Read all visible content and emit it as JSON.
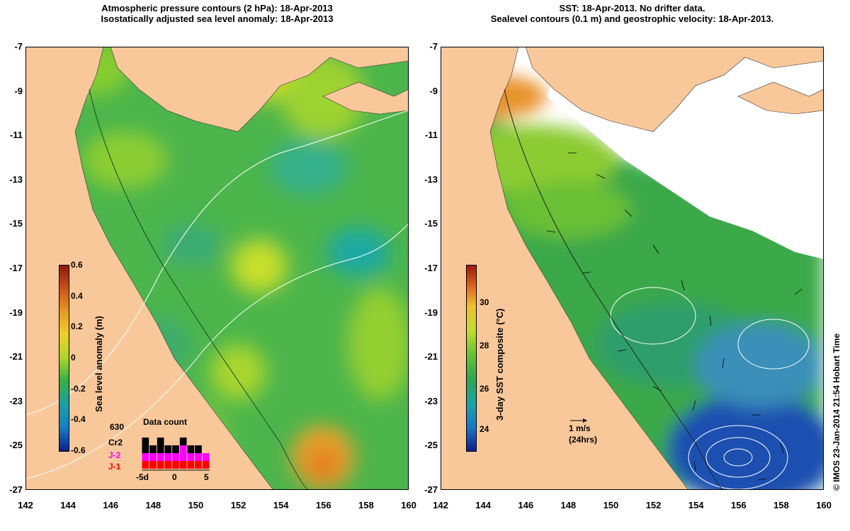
{
  "left_panel": {
    "title_line1": "Atmospheric pressure contours (2 hPa): 18-Apr-2013",
    "title_line2": "Isostatically adjusted sea level anomaly: 18-Apr-2013",
    "colorbar": {
      "label": "Sea level anomaly (m)",
      "ticks": [
        "0.6",
        "0.4",
        "0.2",
        "0",
        "-0.2",
        "-0.4",
        "-0.6"
      ]
    },
    "data_count": {
      "title": "Data count",
      "max_label": "630",
      "series_labels": [
        "Cr2",
        "J-2",
        "J-1"
      ],
      "series_colors": [
        "#000000",
        "#ff00ff",
        "#ff0000"
      ],
      "x_labels": [
        "-5d",
        "0",
        "5"
      ],
      "bars": [
        {
          "j1": 1,
          "j2": 1,
          "cr2": 2
        },
        {
          "j1": 1,
          "j2": 1,
          "cr2": 1
        },
        {
          "j1": 1,
          "j2": 1,
          "cr2": 2
        },
        {
          "j1": 1,
          "j2": 1,
          "cr2": 1
        },
        {
          "j1": 1,
          "j2": 1,
          "cr2": 1
        },
        {
          "j1": 1,
          "j2": 2,
          "cr2": 1
        },
        {
          "j1": 1,
          "j2": 1,
          "cr2": 1
        },
        {
          "j1": 1,
          "j2": 1,
          "cr2": 1
        },
        {
          "j1": 1,
          "j2": 1,
          "cr2": 0
        }
      ]
    }
  },
  "right_panel": {
    "title_line1": "SST: 18-Apr-2013. No drifter data.",
    "title_line2": "Sealevel contours (0.1 m) and geostrophic velocity: 18-Apr-2013.",
    "colorbar": {
      "label": "3-day SST composite (°C)",
      "ticks": [
        "30",
        "28",
        "26",
        "24"
      ]
    },
    "scale_arrow": {
      "line1": "1 m/s",
      "line2": "(24hrs)"
    }
  },
  "axes": {
    "lat_labels": [
      "-7",
      "-9",
      "-11",
      "-13",
      "-15",
      "-17",
      "-19",
      "-21",
      "-23",
      "-25",
      "-27"
    ],
    "lon_labels": [
      "142",
      "144",
      "146",
      "148",
      "150",
      "152",
      "154",
      "156",
      "158",
      "160"
    ]
  },
  "credit": "© IMOS 23-Jan-2014 21:54 Hobart Time",
  "colors": {
    "land": "#f9c89a",
    "sea_base": "#4cb54c",
    "sst_cold": "#1a4fb0",
    "cloud": "#ffffff"
  }
}
